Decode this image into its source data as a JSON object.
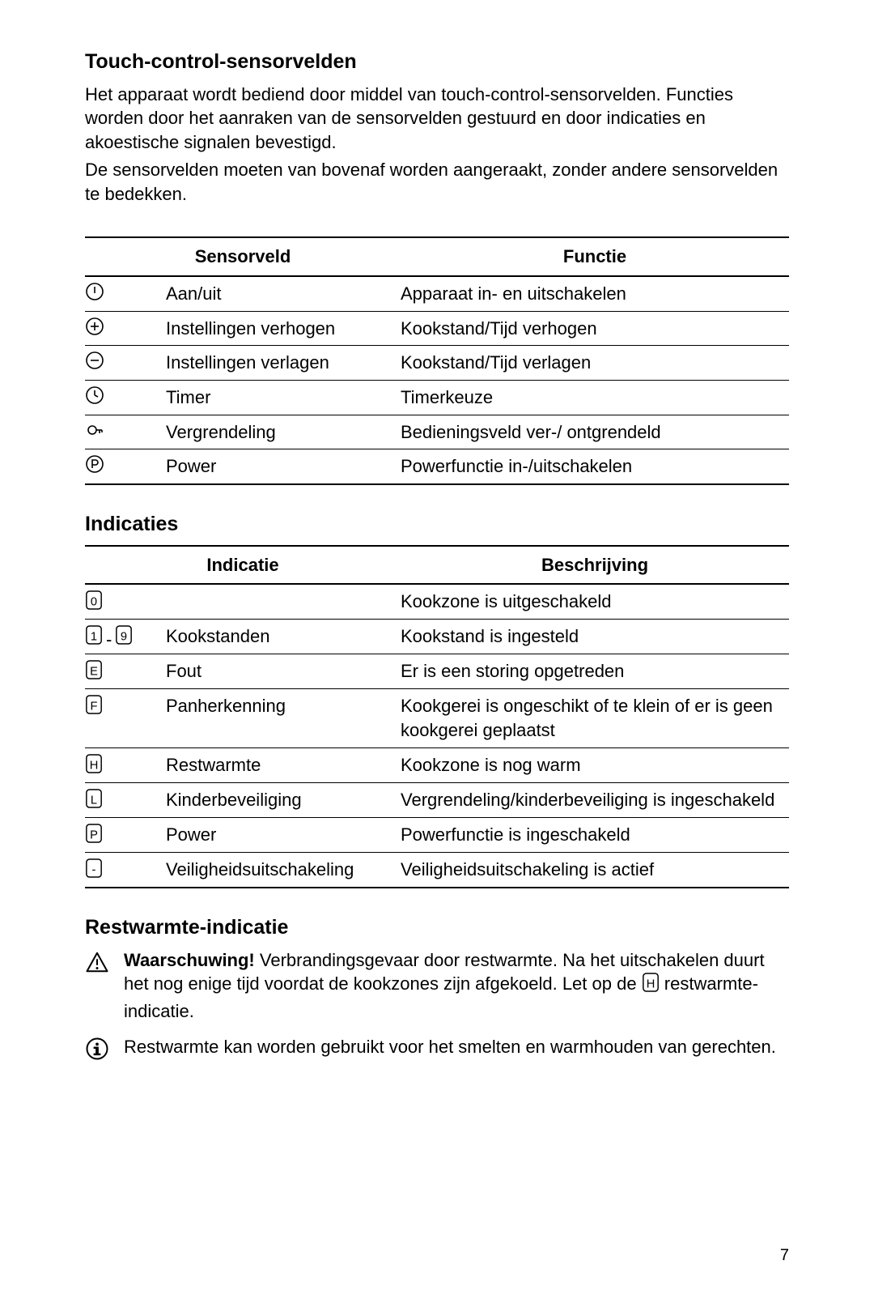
{
  "section1": {
    "heading": "Touch-control-sensorvelden",
    "para1": "Het apparaat wordt bediend door middel van touch-control-sensorvelden. Functies worden door het aanraken van de sensorvelden gestuurd en door indicaties en akoestische signalen bevestigd.",
    "para2": "De sensorvelden moeten van bovenaf worden aangeraakt, zonder andere sensorvelden te bedekken."
  },
  "table1": {
    "headers": {
      "sensor": "Sensorveld",
      "func": "Functie"
    },
    "rows": [
      {
        "icon": "power-on-icon",
        "sensor": "Aan/uit",
        "func": "Apparaat in- en uitschakelen"
      },
      {
        "icon": "plus-icon",
        "sensor": "Instellingen verhogen",
        "func": "Kookstand/Tijd verhogen"
      },
      {
        "icon": "minus-icon",
        "sensor": "Instellingen verlagen",
        "func": "Kookstand/Tijd verlagen"
      },
      {
        "icon": "timer-icon",
        "sensor": "Timer",
        "func": "Timerkeuze"
      },
      {
        "icon": "lock-icon",
        "sensor": "Vergrendeling",
        "func": "Bedieningsveld ver-/ ontgrendeld"
      },
      {
        "icon": "power-p-icon",
        "sensor": "Power",
        "func": "Powerfunctie in-/uitschakelen"
      }
    ]
  },
  "section2": {
    "heading": "Indicaties"
  },
  "table2": {
    "headers": {
      "ind": "Indicatie",
      "desc": "Beschrijving"
    },
    "rows": [
      {
        "icon": "disp-0",
        "ind": "",
        "desc": "Kookzone is uitgeschakeld"
      },
      {
        "icon": "disp-1-9",
        "ind": "Kookstanden",
        "desc": "Kookstand is ingesteld"
      },
      {
        "icon": "disp-E",
        "ind": "Fout",
        "desc": "Er is een storing opgetreden"
      },
      {
        "icon": "disp-F",
        "ind": "Panherkenning",
        "desc": "Kookgerei is ongeschikt of te klein of er is geen kookgerei geplaatst"
      },
      {
        "icon": "disp-H",
        "ind": "Restwarmte",
        "desc": "Kookzone is nog warm"
      },
      {
        "icon": "disp-L",
        "ind": "Kinderbeveiliging",
        "desc": "Vergrendeling/kinderbeveiliging is ingeschakeld"
      },
      {
        "icon": "disp-P",
        "ind": "Power",
        "desc": "Powerfunctie is ingeschakeld"
      },
      {
        "icon": "disp-dash",
        "ind": "Veiligheidsuitschakeling",
        "desc": "Veiligheidsuitschakeling is actief"
      }
    ]
  },
  "section3": {
    "heading": "Restwarmte-indicatie",
    "warn_label": "Waarschuwing!",
    "warn_text": " Verbrandingsgevaar door restwarmte. Na het uitschakelen duurt het nog enige tijd voordat de kookzones zijn afgekoeld. Let op de ",
    "warn_text_after": " restwarmte-indicatie.",
    "info_text": "Restwarmte kan worden gebruikt voor het smelten en warmhouden van gerechten."
  },
  "page_number": "7"
}
